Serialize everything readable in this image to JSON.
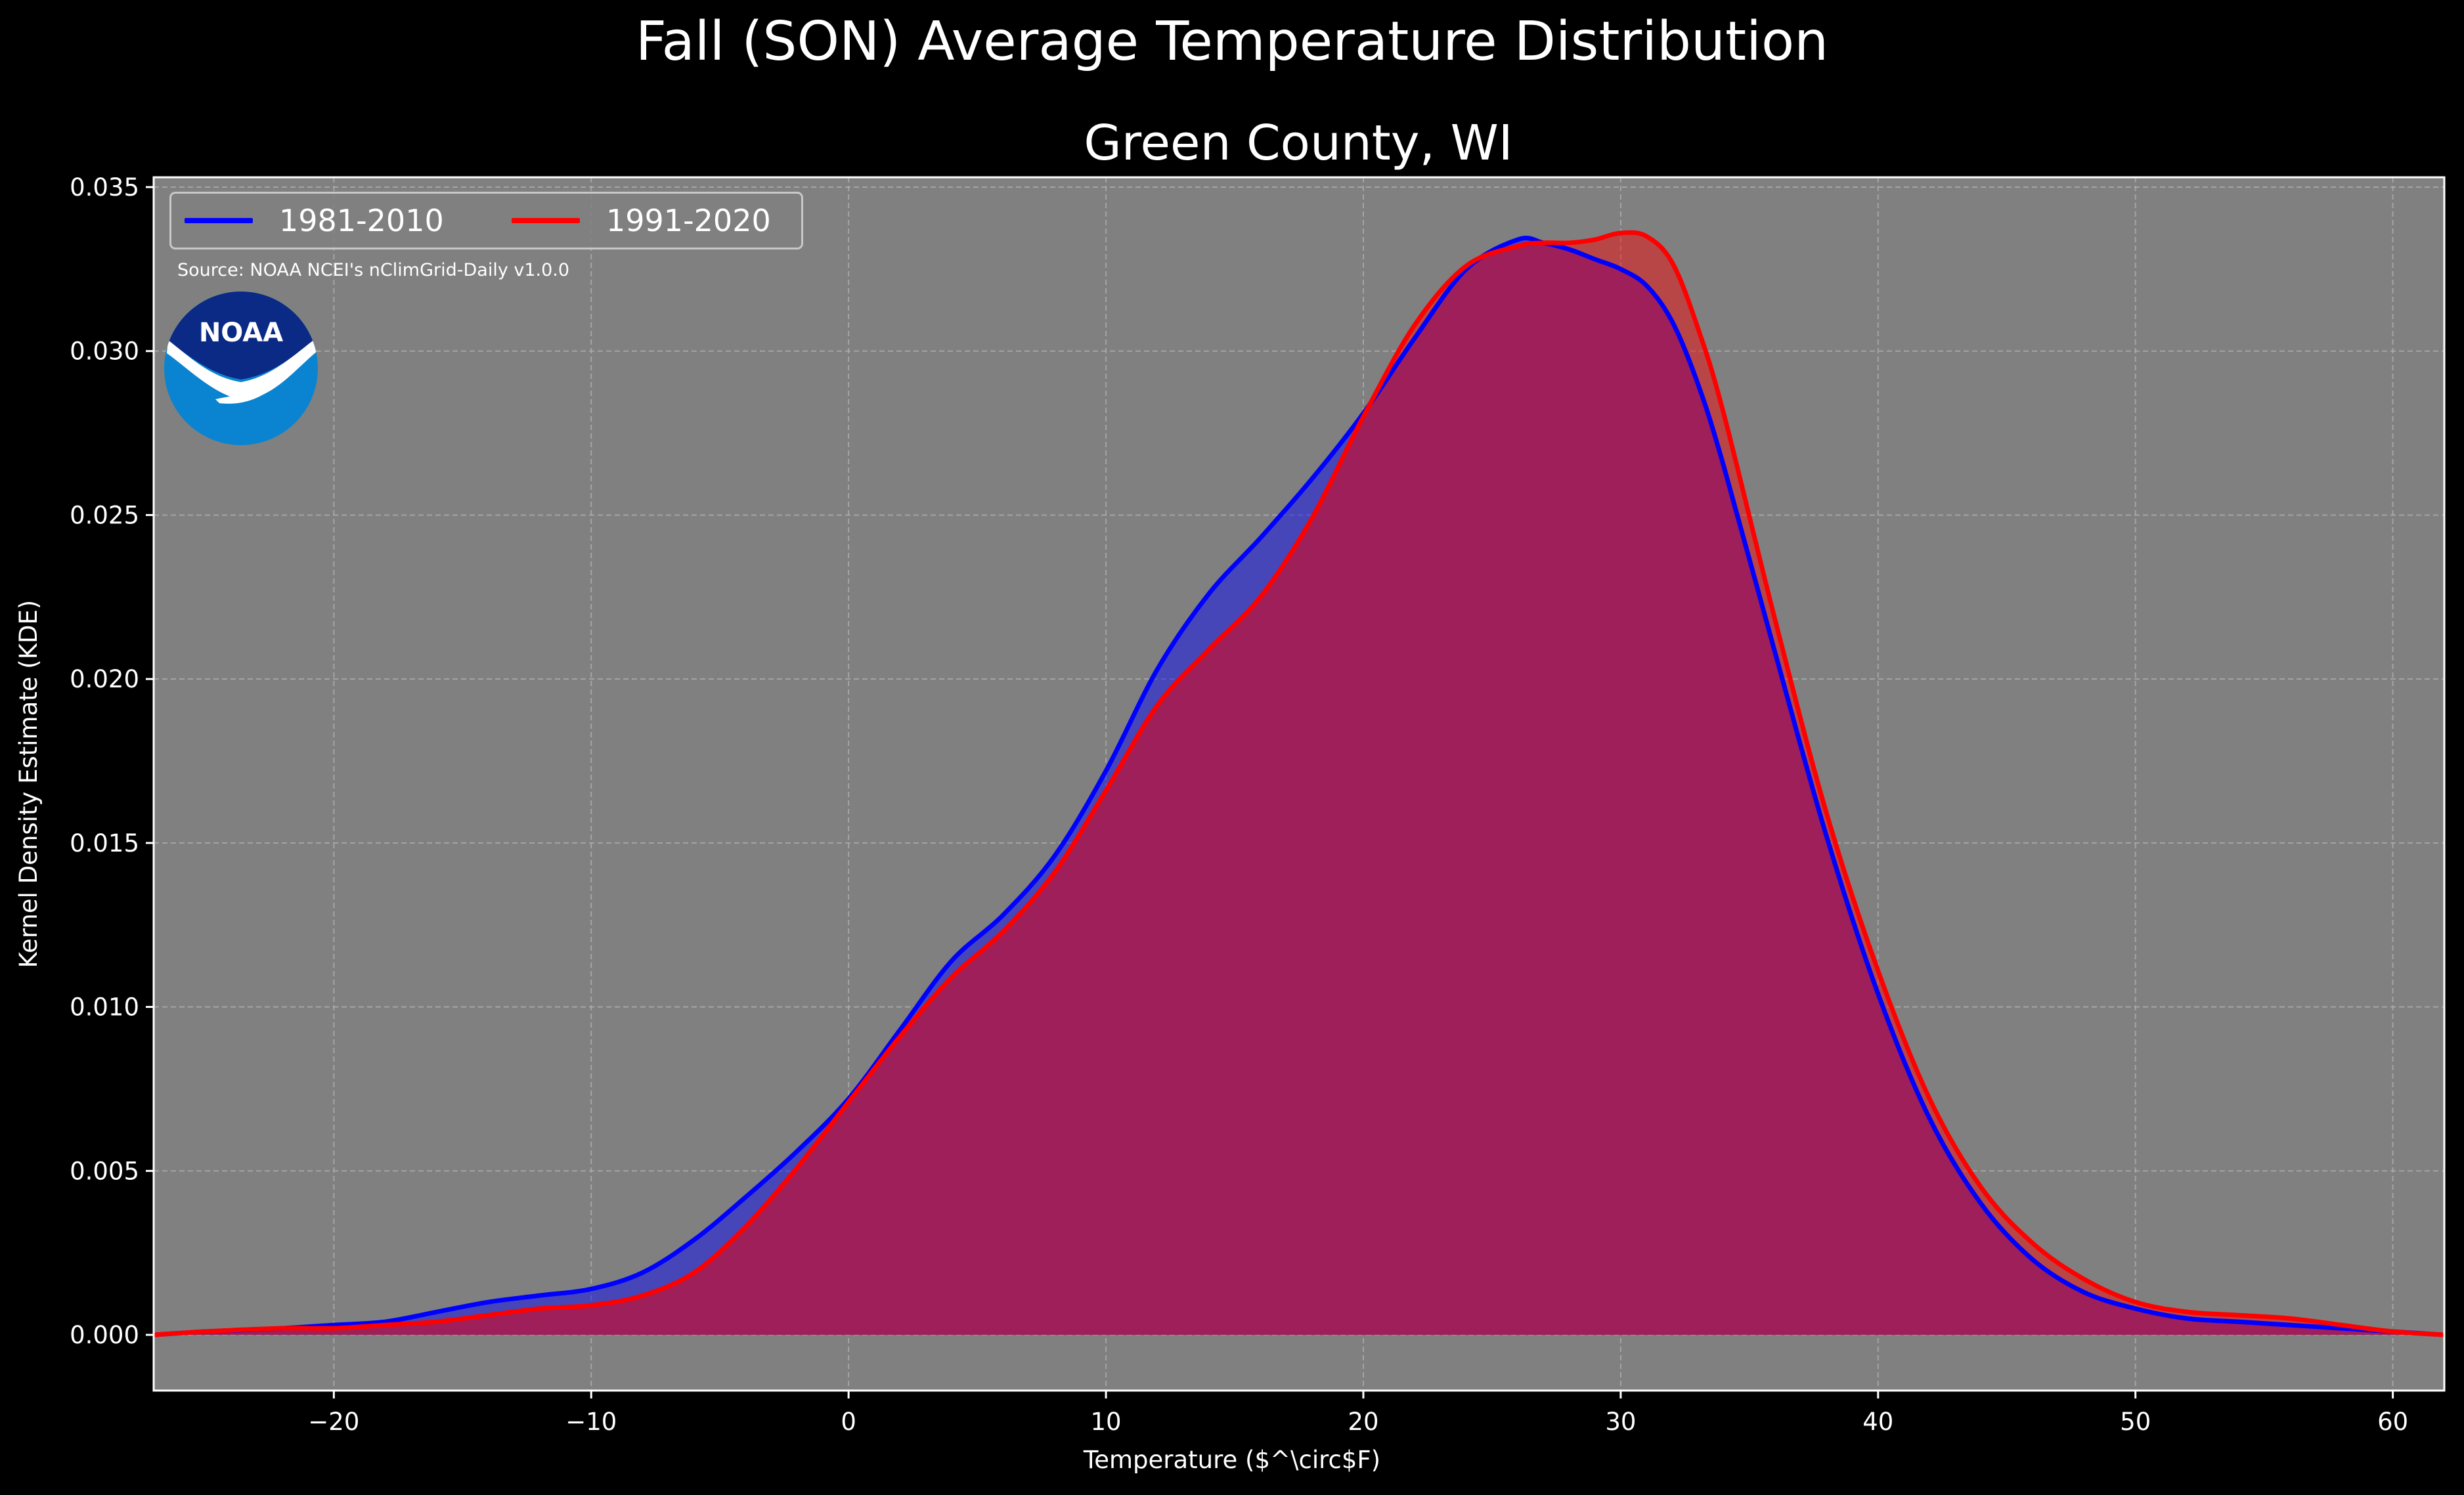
{
  "figure": {
    "suptitle": "Fall (SON) Average Temperature Distribution",
    "title": "Green County, WI",
    "source_note": "Source: NOAA NCEI's nClimGrid-Daily v1.0.0",
    "logo_text": "NOAA"
  },
  "colors": {
    "background": "#000000",
    "plot_background": "#808080",
    "grid": "#b4b4b4",
    "series_1981_2010": "#0000ff",
    "series_1991_2020": "#ff0000",
    "overlap_fill": "#9e1f5a",
    "logo_dark": "#0a2a85",
    "logo_light": "#0a84d0"
  },
  "chart_data": {
    "type": "area",
    "xlabel": "Temperature ($^\\circ$F)",
    "ylabel": "Kernel Density Estimate (KDE)",
    "xlim": [
      -27,
      62
    ],
    "ylim": [
      -0.0017,
      0.0353
    ],
    "xticks": [
      -20,
      -10,
      0,
      10,
      20,
      30,
      40,
      50,
      60
    ],
    "xtick_labels": [
      "−20",
      "−10",
      "0",
      "10",
      "20",
      "30",
      "40",
      "50",
      "60"
    ],
    "yticks": [
      0.0,
      0.005,
      0.01,
      0.015,
      0.02,
      0.025,
      0.03,
      0.035
    ],
    "ytick_labels": [
      "0.000",
      "0.005",
      "0.010",
      "0.015",
      "0.020",
      "0.025",
      "0.030",
      "0.035"
    ],
    "grid": true,
    "legend_position": "top-left",
    "x": [
      -27,
      -25,
      -22,
      -20,
      -18,
      -16,
      -14,
      -12,
      -10,
      -8,
      -6,
      -4,
      -2,
      0,
      2,
      4,
      6,
      8,
      10,
      12,
      14,
      16,
      18,
      20,
      22,
      24,
      26,
      27,
      28,
      29,
      30,
      31,
      32,
      33,
      34,
      36,
      38,
      40,
      42,
      44,
      46,
      48,
      50,
      52,
      54,
      56,
      58,
      60,
      62
    ],
    "series": [
      {
        "name": "1981-2010",
        "values": [
          0.0,
          0.0001,
          0.0002,
          0.0003,
          0.0004,
          0.0007,
          0.001,
          0.0012,
          0.0014,
          0.0019,
          0.0029,
          0.0042,
          0.0056,
          0.0072,
          0.0093,
          0.0114,
          0.0128,
          0.0146,
          0.0172,
          0.0203,
          0.0226,
          0.0243,
          0.0261,
          0.0281,
          0.0304,
          0.0325,
          0.0334,
          0.0333,
          0.0331,
          0.0328,
          0.0325,
          0.032,
          0.0309,
          0.029,
          0.0265,
          0.0208,
          0.0152,
          0.0104,
          0.0066,
          0.004,
          0.0023,
          0.0013,
          0.0008,
          0.0005,
          0.0004,
          0.0003,
          0.0002,
          0.0001,
          0.0
        ]
      },
      {
        "name": "1991-2020",
        "values": [
          0.0,
          0.0001,
          0.0002,
          0.0002,
          0.0003,
          0.0004,
          0.0006,
          0.0008,
          0.0009,
          0.0012,
          0.0019,
          0.0033,
          0.0051,
          0.0071,
          0.0091,
          0.0109,
          0.0123,
          0.0141,
          0.0166,
          0.0192,
          0.0209,
          0.0225,
          0.0249,
          0.028,
          0.0308,
          0.0326,
          0.0332,
          0.0333,
          0.0333,
          0.0334,
          0.0336,
          0.0335,
          0.0327,
          0.0307,
          0.0281,
          0.0218,
          0.0159,
          0.0111,
          0.0072,
          0.0045,
          0.0028,
          0.0017,
          0.001,
          0.0007,
          0.0006,
          0.0005,
          0.0003,
          0.0001,
          0.0
        ]
      }
    ]
  }
}
